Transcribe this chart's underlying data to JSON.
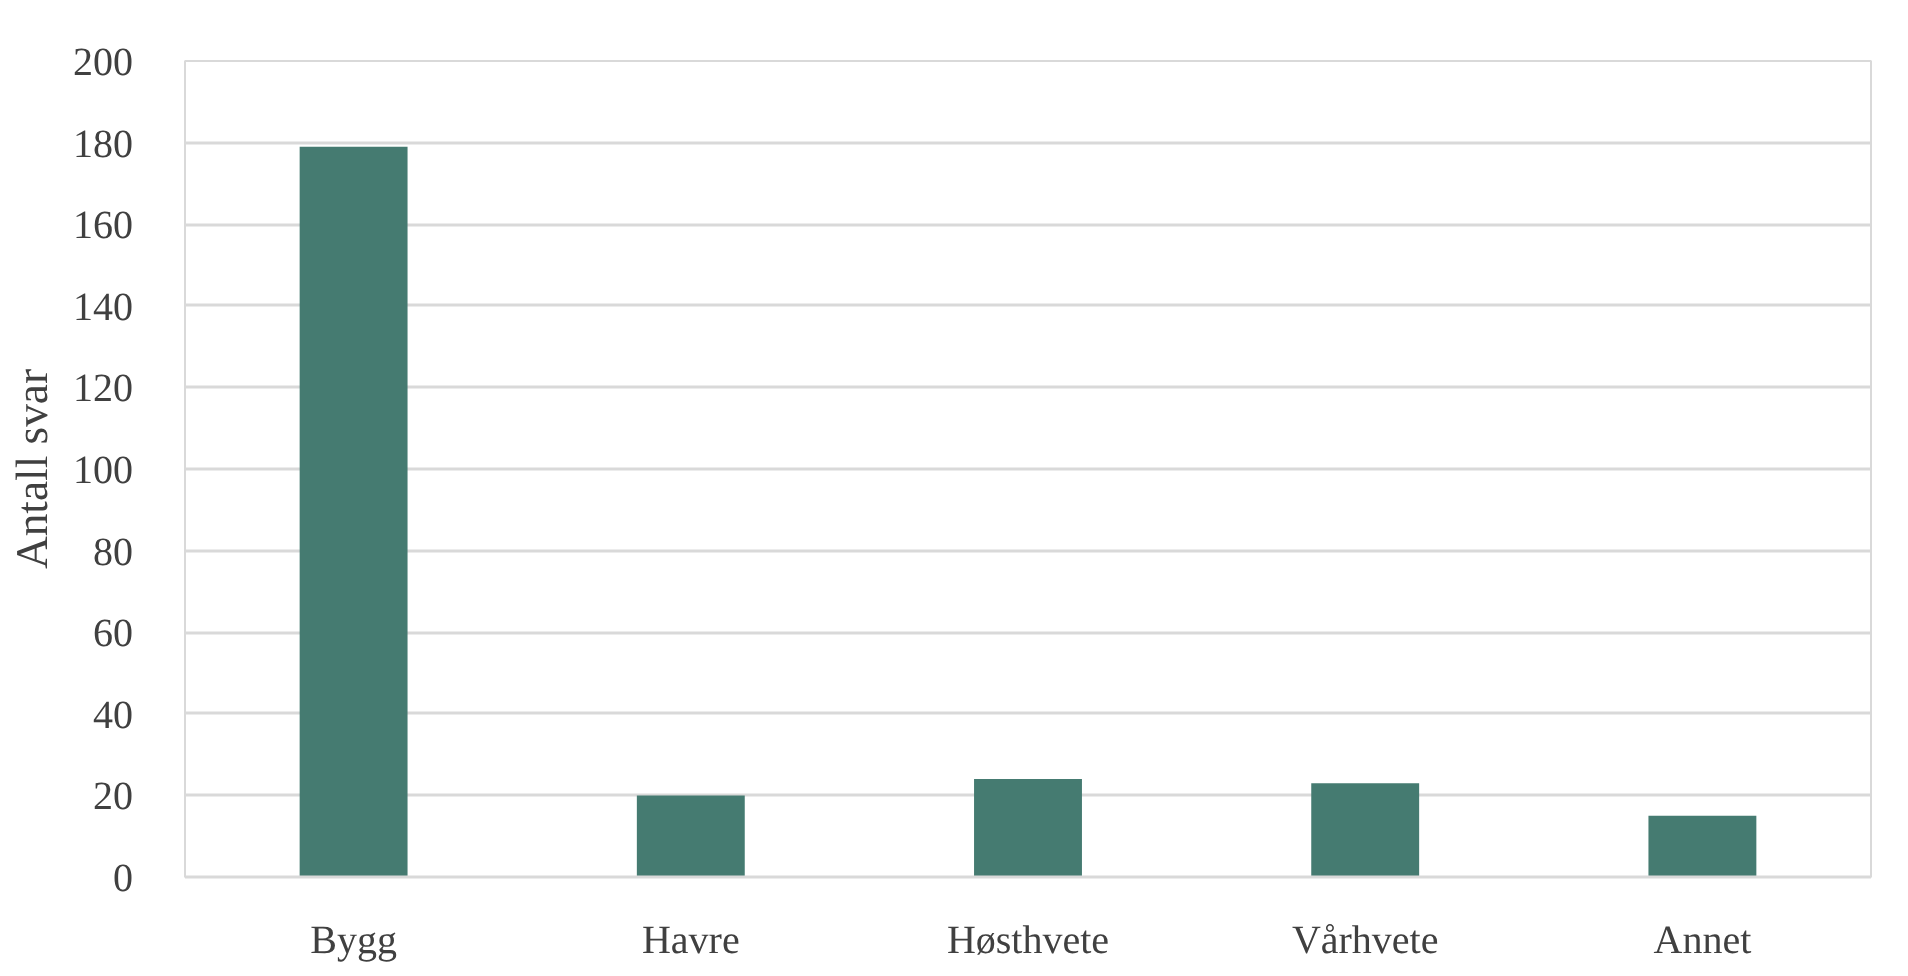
{
  "chart_data": {
    "type": "bar",
    "ylabel": "Antall svar",
    "categories": [
      "Bygg",
      "Havre",
      "Høsthvete",
      "Vårhvete",
      "Annet"
    ],
    "values": [
      179,
      20,
      24,
      23,
      15
    ],
    "color": "#457b71",
    "ylim": [
      0,
      200
    ],
    "yticks": [
      0,
      20,
      40,
      60,
      80,
      100,
      120,
      140,
      160,
      180,
      200
    ],
    "grid": "y"
  }
}
